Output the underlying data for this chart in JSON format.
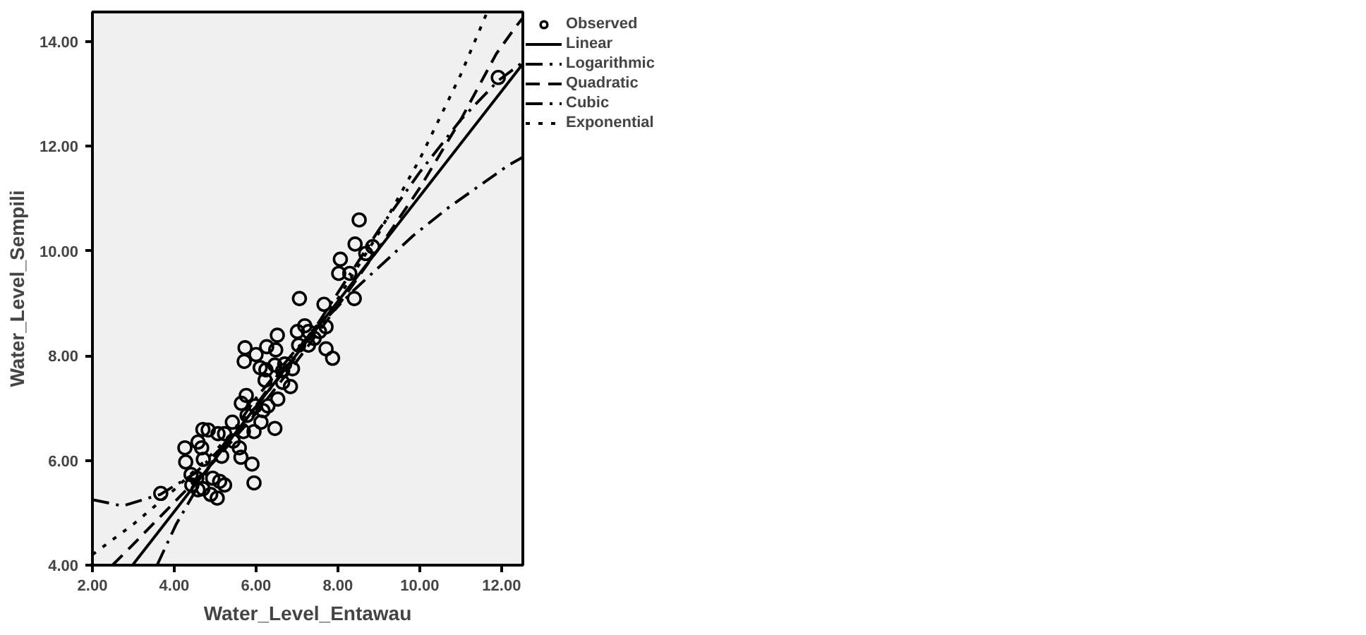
{
  "chart_data": {
    "type": "scatter",
    "xlabel": "Water_Level_Entawau",
    "ylabel": "Water_Level_Sempili",
    "xlim": [
      2,
      12.52
    ],
    "ylim": [
      4,
      14.56
    ],
    "xticks": [
      {
        "value": 2,
        "label": "2.00"
      },
      {
        "value": 4,
        "label": "4.00"
      },
      {
        "value": 6,
        "label": "6.00"
      },
      {
        "value": 8,
        "label": "8.00"
      },
      {
        "value": 10,
        "label": "10.00"
      },
      {
        "value": 12,
        "label": "12.00"
      }
    ],
    "yticks": [
      {
        "value": 4,
        "label": "4.00"
      },
      {
        "value": 6,
        "label": "6.00"
      },
      {
        "value": 8,
        "label": "8.00"
      },
      {
        "value": 10,
        "label": "10.00"
      },
      {
        "value": 12,
        "label": "12.00"
      },
      {
        "value": 14,
        "label": "14.00"
      }
    ],
    "grid": false,
    "legend": "top right",
    "series": [
      {
        "name": "Observed",
        "type": "scatter",
        "marker": "circle",
        "color": "#000000",
        "x": [
          3.67,
          4.26,
          4.28,
          4.41,
          4.58,
          4.7,
          4.83,
          4.67,
          4.71,
          4.55,
          4.43,
          4.58,
          4.7,
          4.89,
          5.05,
          4.94,
          5.11,
          5.23,
          5.07,
          5.23,
          5.16,
          5.42,
          5.44,
          5.59,
          5.63,
          5.64,
          5.76,
          5.69,
          5.78,
          5.95,
          5.9,
          5.95,
          6.12,
          6.29,
          6.46,
          6.53,
          5.73,
          5.71,
          6.0,
          6.48,
          6.1,
          6.24,
          6.22,
          6.46,
          6.65,
          6.89,
          6.84,
          6.65,
          5.98,
          6.17,
          6.52,
          6.26,
          8.52,
          8.42,
          8.06,
          8.02,
          8.29,
          8.4,
          8.68,
          8.85,
          7.06,
          7.66,
          7.71,
          7.71,
          7.87,
          7.19,
          7.01,
          7.28,
          7.42,
          7.55,
          7.04,
          7.28,
          6.7,
          11.92
        ],
        "values": [
          5.37,
          6.24,
          5.97,
          5.73,
          6.35,
          6.59,
          6.58,
          6.24,
          6.02,
          5.66,
          5.53,
          5.44,
          5.46,
          5.35,
          5.28,
          5.66,
          5.6,
          5.53,
          6.51,
          6.51,
          6.08,
          6.73,
          6.37,
          6.24,
          6.06,
          7.09,
          7.24,
          6.55,
          6.86,
          6.55,
          5.93,
          5.57,
          6.73,
          7.04,
          6.61,
          7.17,
          8.15,
          7.89,
          8.02,
          8.11,
          7.77,
          7.73,
          7.53,
          7.82,
          7.71,
          7.75,
          7.41,
          7.49,
          7.04,
          6.95,
          8.39,
          8.17,
          10.59,
          10.13,
          9.84,
          9.57,
          9.57,
          9.09,
          9.95,
          10.08,
          9.09,
          8.98,
          8.55,
          8.13,
          7.95,
          8.57,
          8.46,
          8.46,
          8.33,
          8.46,
          8.2,
          8.2,
          7.84,
          13.31
        ]
      },
      {
        "name": "Linear",
        "type": "line",
        "line_style": "solid",
        "color": "#000000",
        "x": [
          2.98,
          12.52
        ],
        "values": [
          4.0,
          13.57
        ]
      },
      {
        "name": "Logarithmic",
        "type": "line",
        "line_style": "dashdot",
        "color": "#000000",
        "x": [
          3.58,
          4.04,
          5,
          6,
          7,
          8.39,
          9.84,
          10.71,
          12.16,
          12.52
        ],
        "values": [
          4.0,
          4.77,
          6.07,
          7.19,
          8.14,
          9.25,
          10.29,
          10.83,
          11.63,
          11.79
        ]
      },
      {
        "name": "Quadratic",
        "type": "line",
        "line_style": "dashed",
        "color": "#000000",
        "x": [
          2.49,
          3,
          4,
          5,
          6,
          7,
          8,
          9,
          10,
          11,
          11.87,
          12.33,
          12.52
        ],
        "values": [
          4.0,
          4.4,
          5.2,
          6.0,
          6.9,
          7.9,
          8.95,
          10.05,
          11.2,
          12.5,
          13.76,
          14.26,
          14.45
        ]
      },
      {
        "name": "Cubic",
        "type": "line",
        "line_style": "dashdot",
        "color": "#000000",
        "x": [
          2,
          2.74,
          3.66,
          4.5,
          5.5,
          6.5,
          7.5,
          8,
          9,
          10,
          11,
          11.92,
          12.52
        ],
        "values": [
          5.25,
          5.13,
          5.35,
          5.75,
          6.5,
          7.6,
          8.6,
          9.2,
          10.4,
          11.5,
          12.5,
          13.25,
          13.6
        ]
      },
      {
        "name": "Exponential",
        "type": "line",
        "line_style": "dotted",
        "color": "#000000",
        "x": [
          2,
          3,
          4,
          5,
          6,
          7,
          8,
          9,
          10,
          11,
          11.65
        ],
        "values": [
          4.2,
          4.78,
          5.44,
          6.18,
          7.03,
          8.0,
          9.09,
          10.34,
          11.75,
          13.36,
          14.56
        ]
      }
    ]
  }
}
